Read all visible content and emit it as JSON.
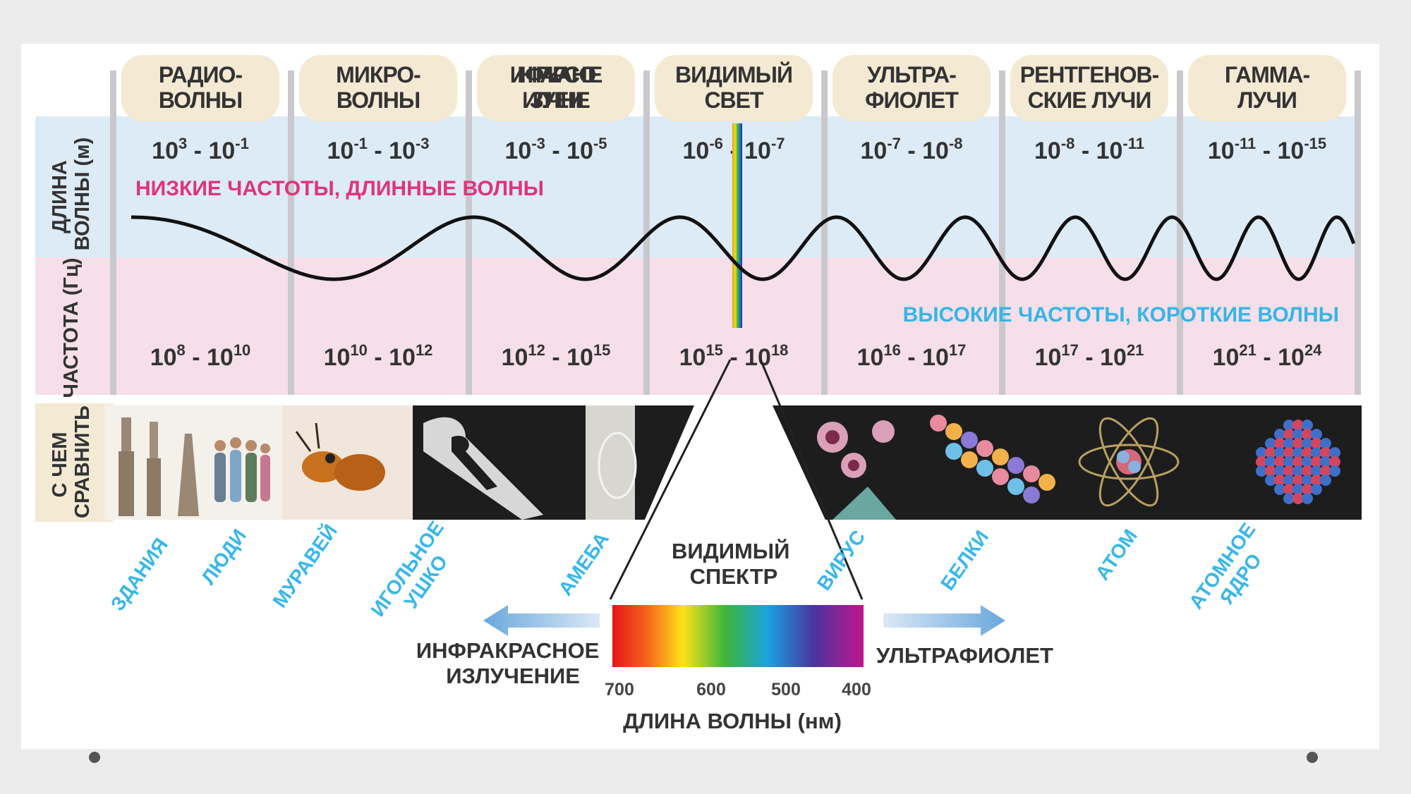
{
  "bands": [
    {
      "name": [
        "РАДИО-",
        "ВОЛНЫ"
      ],
      "wavelength": {
        "base": "10",
        "e1": "3",
        "e2": "-1"
      },
      "frequency": {
        "base": "10",
        "e1": "8",
        "e2": "10"
      }
    },
    {
      "name": [
        "МИКРО-",
        "ВОЛНЫ"
      ],
      "wavelength": {
        "base": "10",
        "e1": "-1",
        "e2": "-3"
      },
      "frequency": {
        "base": "10",
        "e1": "10",
        "e2": "12"
      }
    },
    {
      "name": [
        "ИНФРАКРАСНОЕ",
        "ИЗЛУЧЕНИЕ"
      ],
      "wavelength": {
        "base": "10",
        "e1": "-3",
        "e2": "-5"
      },
      "frequency": {
        "base": "10",
        "e1": "12",
        "e2": "15"
      }
    },
    {
      "name": [
        "ВИДИМЫЙ",
        "СВЕТ"
      ],
      "wavelength": {
        "base": "10",
        "e1": "-6",
        "e2": "-7"
      },
      "frequency": {
        "base": "10",
        "e1": "15",
        "e2": "18"
      }
    },
    {
      "name": [
        "УЛЬТРА-",
        "ФИОЛЕТ"
      ],
      "wavelength": {
        "base": "10",
        "e1": "-7",
        "e2": "-8"
      },
      "frequency": {
        "base": "10",
        "e1": "16",
        "e2": "17"
      }
    },
    {
      "name": [
        "РЕНТГЕНОВ-",
        "СКИЕ ЛУЧИ"
      ],
      "wavelength": {
        "base": "10",
        "e1": "-8",
        "e2": "-11"
      },
      "frequency": {
        "base": "10",
        "e1": "17",
        "e2": "21"
      }
    },
    {
      "name": [
        "ГАММА-",
        "ЛУЧИ"
      ],
      "wavelength": {
        "base": "10",
        "e1": "-11",
        "e2": "-15"
      },
      "frequency": {
        "base": "10",
        "e1": "21",
        "e2": "24"
      }
    }
  ],
  "side_labels": {
    "wavelength": [
      "ДЛИНА",
      "ВОЛНЫ (м)"
    ],
    "frequency": "ЧАСТОТА (Гц)",
    "compare": [
      "С ЧЕМ",
      "СРАВНИТЬ"
    ]
  },
  "low_freq_label": "НИЗКИЕ ЧАСТОТЫ, ДЛИННЫЕ ВОЛНЫ",
  "high_freq_label": "ВЫСОКИЕ ЧАСТОТЫ, КОРОТКИЕ ВОЛНЫ",
  "objects": [
    {
      "lines": [
        "ЗДАНИЯ"
      ],
      "icon": "buildings-icon"
    },
    {
      "lines": [
        "ЛЮДИ"
      ],
      "icon": "people-icon"
    },
    {
      "lines": [
        "МУРАВЕЙ"
      ],
      "icon": "ant-icon"
    },
    {
      "lines": [
        "ИГОЛЬНОЕ",
        "УШКО"
      ],
      "icon": "needle-eye-icon"
    },
    {
      "lines": [
        "АМЕБА"
      ],
      "icon": "amoeba-icon"
    },
    {
      "lines": [
        "ВИРУС"
      ],
      "icon": "virus-icon"
    },
    {
      "lines": [
        "БЕЛКИ"
      ],
      "icon": "protein-icon"
    },
    {
      "lines": [
        "АТОМ"
      ],
      "icon": "atom-icon"
    },
    {
      "lines": [
        "АТОМНОЕ",
        "ЯДРО"
      ],
      "icon": "nucleus-icon"
    }
  ],
  "visible_spectrum": {
    "title": [
      "ВИДИМЫЙ",
      "СПЕКТР"
    ],
    "left_label": [
      "ИНФРАКРАСНОЕ",
      "ИЗЛУЧЕНИЕ"
    ],
    "right_label": "УЛЬТРАФИОЛЕТ",
    "axis_label": "ДЛИНА ВОЛНЫ (нм)",
    "ticks": [
      {
        "label": "700",
        "nm": 700
      },
      {
        "label": "600",
        "nm": 600
      },
      {
        "label": "500",
        "nm": 500
      },
      {
        "label": "400",
        "nm": 400
      }
    ]
  },
  "colors": {
    "header_bg": "#f4e9d3",
    "wavelength_row_bg": "#dcebf6",
    "frequency_row_bg": "#f6dfe9",
    "column_divider": "#c9c9cd",
    "low_freq_text": "#e0337f",
    "high_freq_text": "#35b6e8",
    "object_label": "#38b7ea",
    "wave": "#111111"
  }
}
